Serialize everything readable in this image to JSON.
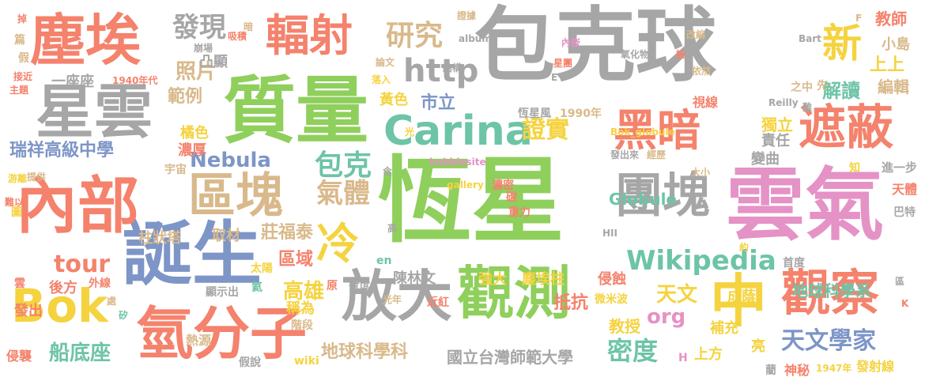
{
  "colors": {
    "gray": "#a6a6a6",
    "salmon": "#f4826c",
    "green": "#8fcf5c",
    "blue": "#7d95c7",
    "pink": "#e592c6",
    "yellow": "#f5d33f",
    "tan": "#d9b98b",
    "teal": "#6dc4a6"
  },
  "words": [
    "恆星",
    "雲氣",
    "包克球",
    "質量",
    "誕生",
    "內部",
    "塵埃",
    "星雲",
    "觀測",
    "氫分子",
    "放大",
    "中",
    "觀察",
    "遮蔽",
    "區塊",
    "團塊",
    "黑暗",
    "輻射",
    "Carina",
    "Bok",
    "冷",
    "新",
    "Wikipedia",
    "發現",
    "研究",
    "http",
    "氣體",
    "包克",
    "證實",
    "密度",
    "天文學家",
    "tour",
    "Nebula",
    "照片",
    "範例",
    "市立",
    "船底座",
    "瑞祥高級中學",
    "解讀",
    "上方",
    "高雄",
    "org",
    "天文",
    "區域",
    "莊福泰",
    "教授",
    "地球科學系",
    "地球科學科",
    "國立台灣師範大學",
    "陳林文",
    "Globule",
    "小島",
    "上上",
    "教師",
    "編輯",
    "成蔭",
    "侵蝕",
    "抵抗",
    "塵埃柱",
    "強大",
    "恆星風",
    "1990年",
    "獨立",
    "責任",
    "變曲",
    "進一步",
    "天體",
    "巴特",
    "神秘",
    "1947年",
    "發射線",
    "藺",
    "亮",
    "補充",
    "首度",
    "微米波",
    "黃色",
    "橘色",
    "濃厚",
    "宇宙",
    "柱狀塔",
    "取材",
    "稱為",
    "後方",
    "外線",
    "發出",
    "雲",
    "侵襲",
    "假說",
    "熱源",
    "階段",
    "近紅",
    "光年",
    "原",
    "氫區",
    "太陽",
    "顯示出",
    "氦",
    "wiki",
    "en",
    "高",
    "含",
    "碳",
    "重力",
    "濃密",
    "gallery",
    "hubblesite",
    "光",
    "Bok_globule",
    "Reilly",
    "視線",
    "經歷",
    "發出來",
    "大小",
    "約",
    "HII",
    "H",
    "K",
    "區",
    "知",
    "難以",
    "游離",
    "提供",
    "圖",
    "矽",
    "處",
    "凸顯",
    "崩場",
    "吸積",
    "暗",
    "一座座",
    "1940年代",
    "接近",
    "主題",
    "假",
    "篇",
    "掉",
    "證據",
    "論文",
    "落入",
    "結構",
    "album",
    "內嵌",
    "星團",
    "E",
    "氧化物",
    "設",
    "依然",
    "改編",
    "Bart",
    "F",
    "先",
    "之中",
    "難"
  ]
}
